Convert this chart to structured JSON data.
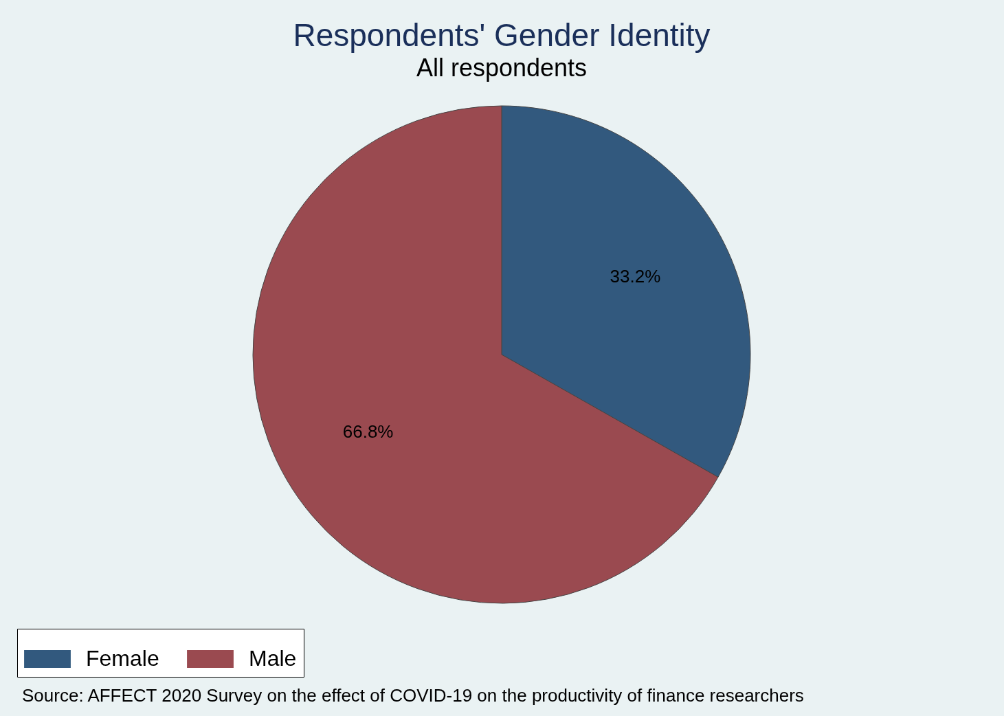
{
  "chart_data": {
    "type": "pie",
    "title": "Respondents' Gender Identity",
    "subtitle": "All respondents",
    "categories": [
      "Female",
      "Male"
    ],
    "values": [
      33.2,
      66.8
    ],
    "colors": [
      "#32597e",
      "#9a4a50"
    ],
    "value_labels": [
      "33.2%",
      "66.8%"
    ],
    "legend": "bottom",
    "annotations": [
      "Source: AFFECT 2020 Survey on the effect of COVID-19 on the productivity of finance researchers"
    ]
  }
}
